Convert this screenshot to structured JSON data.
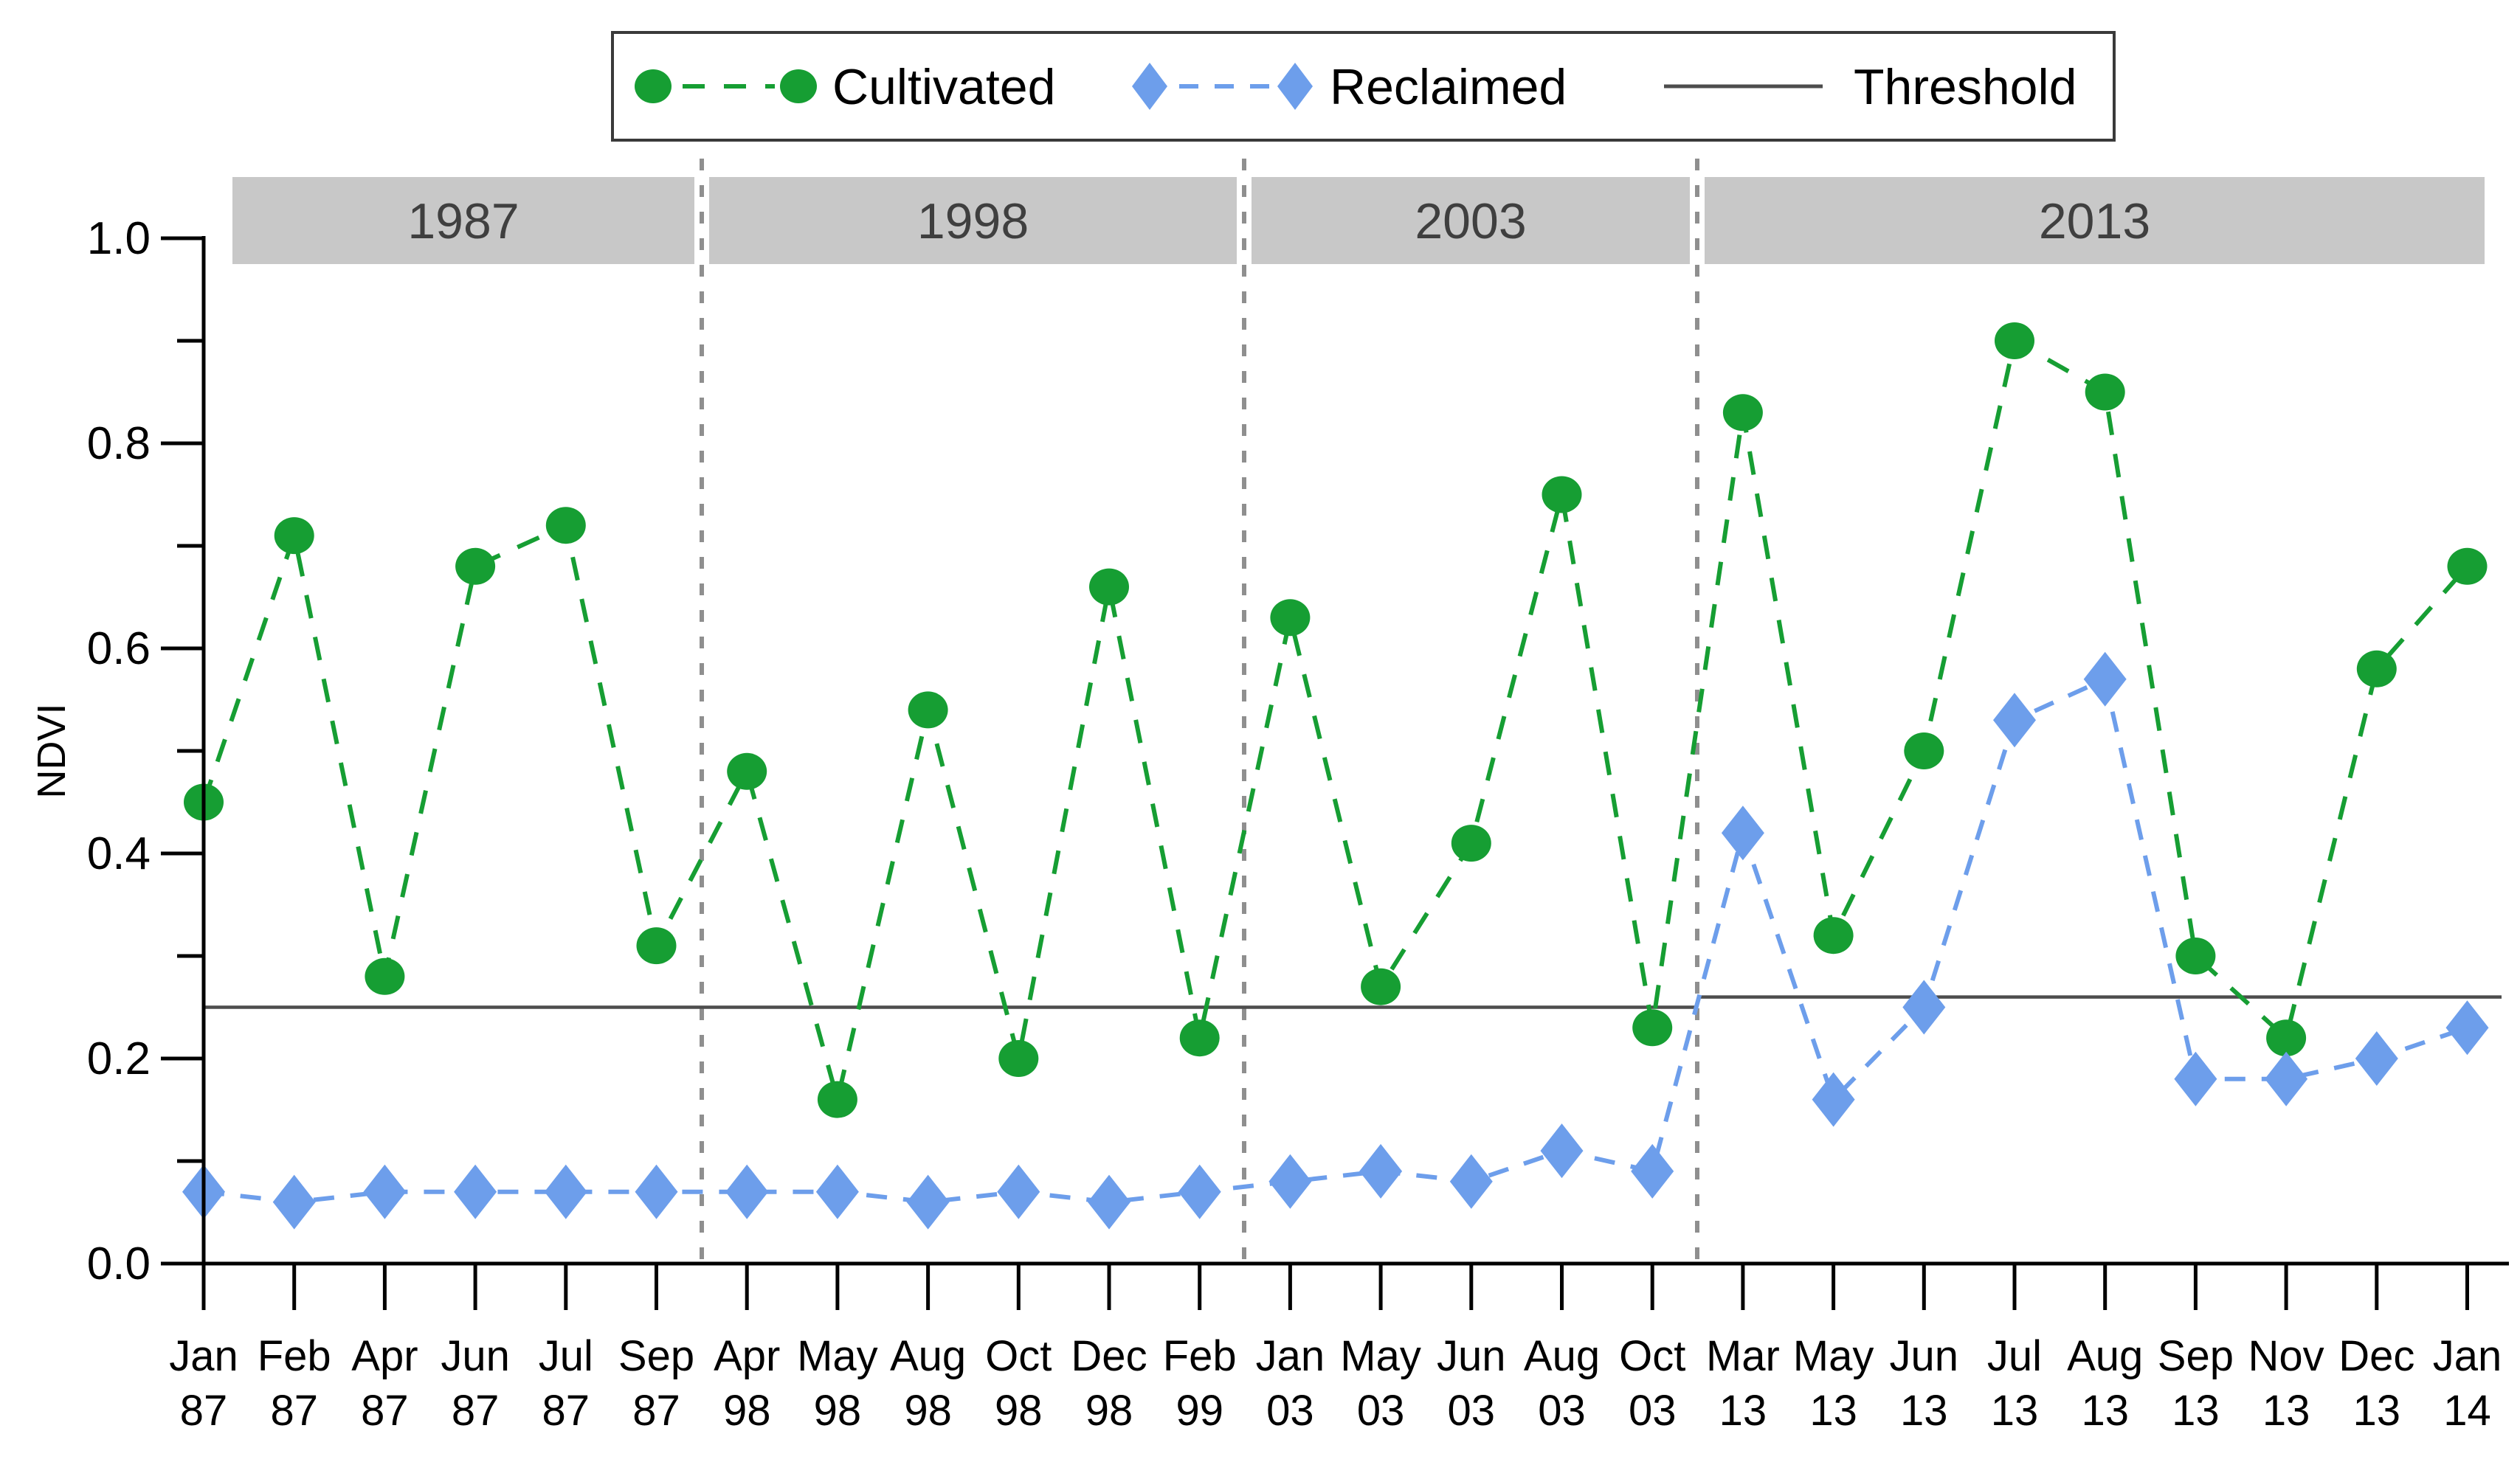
{
  "figure": {
    "background": "#ffffff",
    "colors": {
      "cultivated": "#169e33",
      "reclaimed": "#6d9eeb",
      "threshold_line": "#4d4d4d",
      "panel_band_fill": "#c8c8c8",
      "panel_band_text": "#3f3f3f",
      "separator": "#8f8f8f",
      "axis": "#000000",
      "legend_border": "#3a3a3a",
      "legend_text": "#000000"
    }
  },
  "chart_data": {
    "type": "line",
    "title": "",
    "xlabel": "",
    "ylabel": "NDVI",
    "ylim": [
      0.0,
      1.0
    ],
    "grid": false,
    "legend_position": "top",
    "y_major_ticks": [
      0.0,
      0.2,
      0.4,
      0.6,
      0.8,
      1.0
    ],
    "y_minor_ticks": [
      0.1,
      0.3,
      0.5,
      0.7,
      0.9
    ],
    "categories": [
      "Jan 87",
      "Feb 87",
      "Apr 87",
      "Jun 87",
      "Jul 87",
      "Sep 87",
      "Apr 98",
      "May 98",
      "Aug 98",
      "Oct 98",
      "Dec 98",
      "Feb 99",
      "Jan 03",
      "May 03",
      "Jun 03",
      "Aug 03",
      "Oct 03",
      "Mar 13",
      "May 13",
      "Jun 13",
      "Jul 13",
      "Aug 13",
      "Sep 13",
      "Nov 13",
      "Dec 13",
      "Jan 14"
    ],
    "panels": [
      {
        "label": "1987",
        "start": 0,
        "end": 5,
        "threshold": 0.25
      },
      {
        "label": "1998",
        "start": 6,
        "end": 11,
        "threshold": 0.25
      },
      {
        "label": "2003",
        "start": 12,
        "end": 16,
        "threshold": 0.25
      },
      {
        "label": "2013",
        "start": 17,
        "end": 25,
        "threshold": 0.26
      }
    ],
    "series": [
      {
        "name": "Cultivated",
        "marker": "circle",
        "color": "#169e33",
        "values": [
          0.45,
          0.71,
          0.28,
          0.68,
          0.72,
          0.31,
          0.48,
          0.16,
          0.54,
          0.2,
          0.66,
          0.22,
          0.63,
          0.27,
          0.41,
          0.75,
          0.23,
          0.83,
          0.32,
          0.5,
          0.9,
          0.85,
          0.3,
          0.22,
          0.58,
          0.68
        ]
      },
      {
        "name": "Reclaimed",
        "marker": "diamond",
        "color": "#6d9eeb",
        "values": [
          0.07,
          0.06,
          0.07,
          0.07,
          0.07,
          0.07,
          0.07,
          0.07,
          0.06,
          0.07,
          0.06,
          0.07,
          0.08,
          0.09,
          0.08,
          0.11,
          0.09,
          0.42,
          0.16,
          0.25,
          0.53,
          0.57,
          0.18,
          0.18,
          0.2,
          0.23
        ]
      }
    ],
    "threshold": {
      "name": "Threshold",
      "color": "#4d4d4d"
    }
  }
}
